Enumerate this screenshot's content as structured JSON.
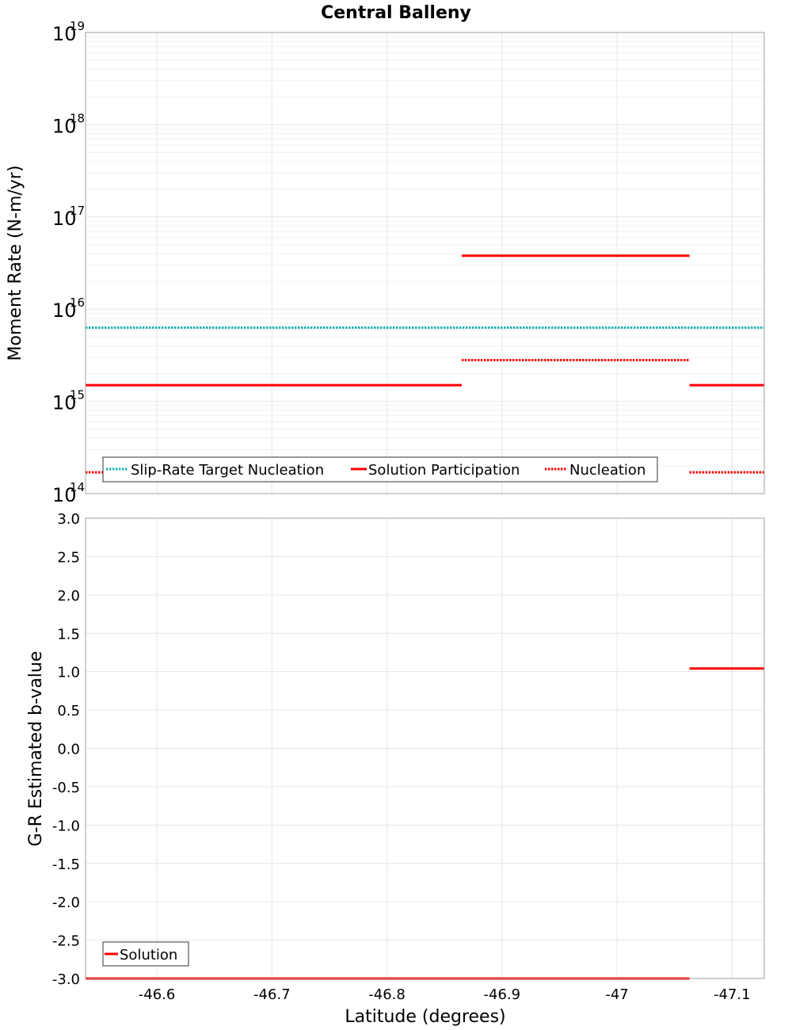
{
  "chart_data": {
    "title": "Central Balleny",
    "x": {
      "label": "Latitude (degrees)",
      "range": [
        -46.538,
        -47.128
      ],
      "ticks": [
        -46.6,
        -46.7,
        -46.8,
        -46.9,
        -47.0,
        -47.1
      ],
      "tick_labels": [
        "-46.6",
        "-46.7",
        "-46.8",
        "-46.9",
        "-47",
        "-47.1"
      ]
    },
    "charts": [
      {
        "type": "line",
        "scale": "log",
        "ylabel": "Moment Rate (N-m/yr)",
        "ylim": [
          100000000000000.0,
          1e+19
        ],
        "y_tick_exponents": [
          "14",
          "15",
          "16",
          "17",
          "18",
          "19"
        ],
        "y_tick_base": "10",
        "legend_position": "bottom-left",
        "series": [
          {
            "name": "Slip-Rate Target Nucleation",
            "color": "#1fb3b3",
            "dash": "dotted",
            "segments": [
              {
                "x0": -46.538,
                "x1": -47.128,
                "y": 6300000000000000.0
              }
            ]
          },
          {
            "name": "Solution Participation",
            "color": "#ff0000",
            "dash": "solid",
            "segments": [
              {
                "x0": -46.538,
                "x1": -46.865,
                "y": 1500000000000000.0
              },
              {
                "x0": -46.865,
                "x1": -47.063,
                "y": 3.8e+16
              },
              {
                "x0": -47.063,
                "x1": -47.128,
                "y": 1500000000000000.0
              }
            ]
          },
          {
            "name": "Nucleation",
            "color": "#ff0000",
            "dash": "dotted",
            "segments": [
              {
                "x0": -46.538,
                "x1": -46.865,
                "y": 170000000000000.0
              },
              {
                "x0": -46.865,
                "x1": -47.063,
                "y": 2800000000000000.0
              },
              {
                "x0": -47.063,
                "x1": -47.128,
                "y": 170000000000000.0
              }
            ]
          }
        ]
      },
      {
        "type": "line",
        "scale": "linear",
        "ylabel": "G-R Estimated b-value",
        "ylim": [
          -3.0,
          3.0
        ],
        "y_ticks": [
          3.0,
          2.5,
          2.0,
          1.5,
          1.0,
          0.5,
          0.0,
          -0.5,
          -1.0,
          -1.5,
          -2.0,
          -2.5,
          -3.0
        ],
        "y_tick_labels": [
          "3.0",
          "2.5",
          "2.0",
          "1.5",
          "1.0",
          "0.5",
          "0.0",
          "-0.5",
          "-1.0",
          "-1.5",
          "-2.0",
          "-2.5",
          "-3.0"
        ],
        "legend_position": "bottom-left",
        "series": [
          {
            "name": "Solution",
            "color": "#ff0000",
            "dash": "solid",
            "segments": [
              {
                "x0": -46.538,
                "x1": -47.063,
                "y": -3.0
              },
              {
                "x0": -47.063,
                "x1": -47.128,
                "y": 1.04
              }
            ]
          }
        ]
      }
    ]
  }
}
